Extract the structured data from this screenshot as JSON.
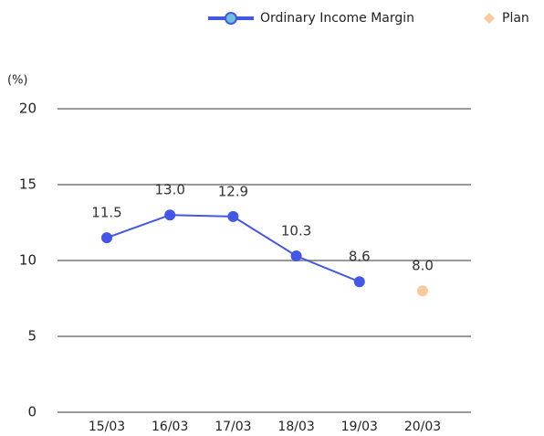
{
  "chart_data": {
    "type": "line",
    "y_axis_label": "(%)",
    "categories": [
      "15/03",
      "16/03",
      "17/03",
      "18/03",
      "19/03",
      "20/03"
    ],
    "series": [
      {
        "name": "Ordinary Income Margin",
        "color": "#4257e6",
        "values": [
          11.5,
          13,
          12.9,
          10.3,
          8.6,
          null
        ],
        "value_labels": [
          "11.5",
          "13.0",
          "12.9",
          "10.3",
          "8.6",
          null
        ]
      },
      {
        "name": "Plan",
        "color": "#fbc99b",
        "values": [
          null,
          null,
          null,
          null,
          null,
          8
        ],
        "value_labels": [
          null,
          null,
          null,
          null,
          null,
          "8.0"
        ]
      }
    ],
    "ylim": [
      0,
      20
    ],
    "yticks": [
      0,
      5,
      10,
      15,
      20
    ],
    "grid": true
  }
}
